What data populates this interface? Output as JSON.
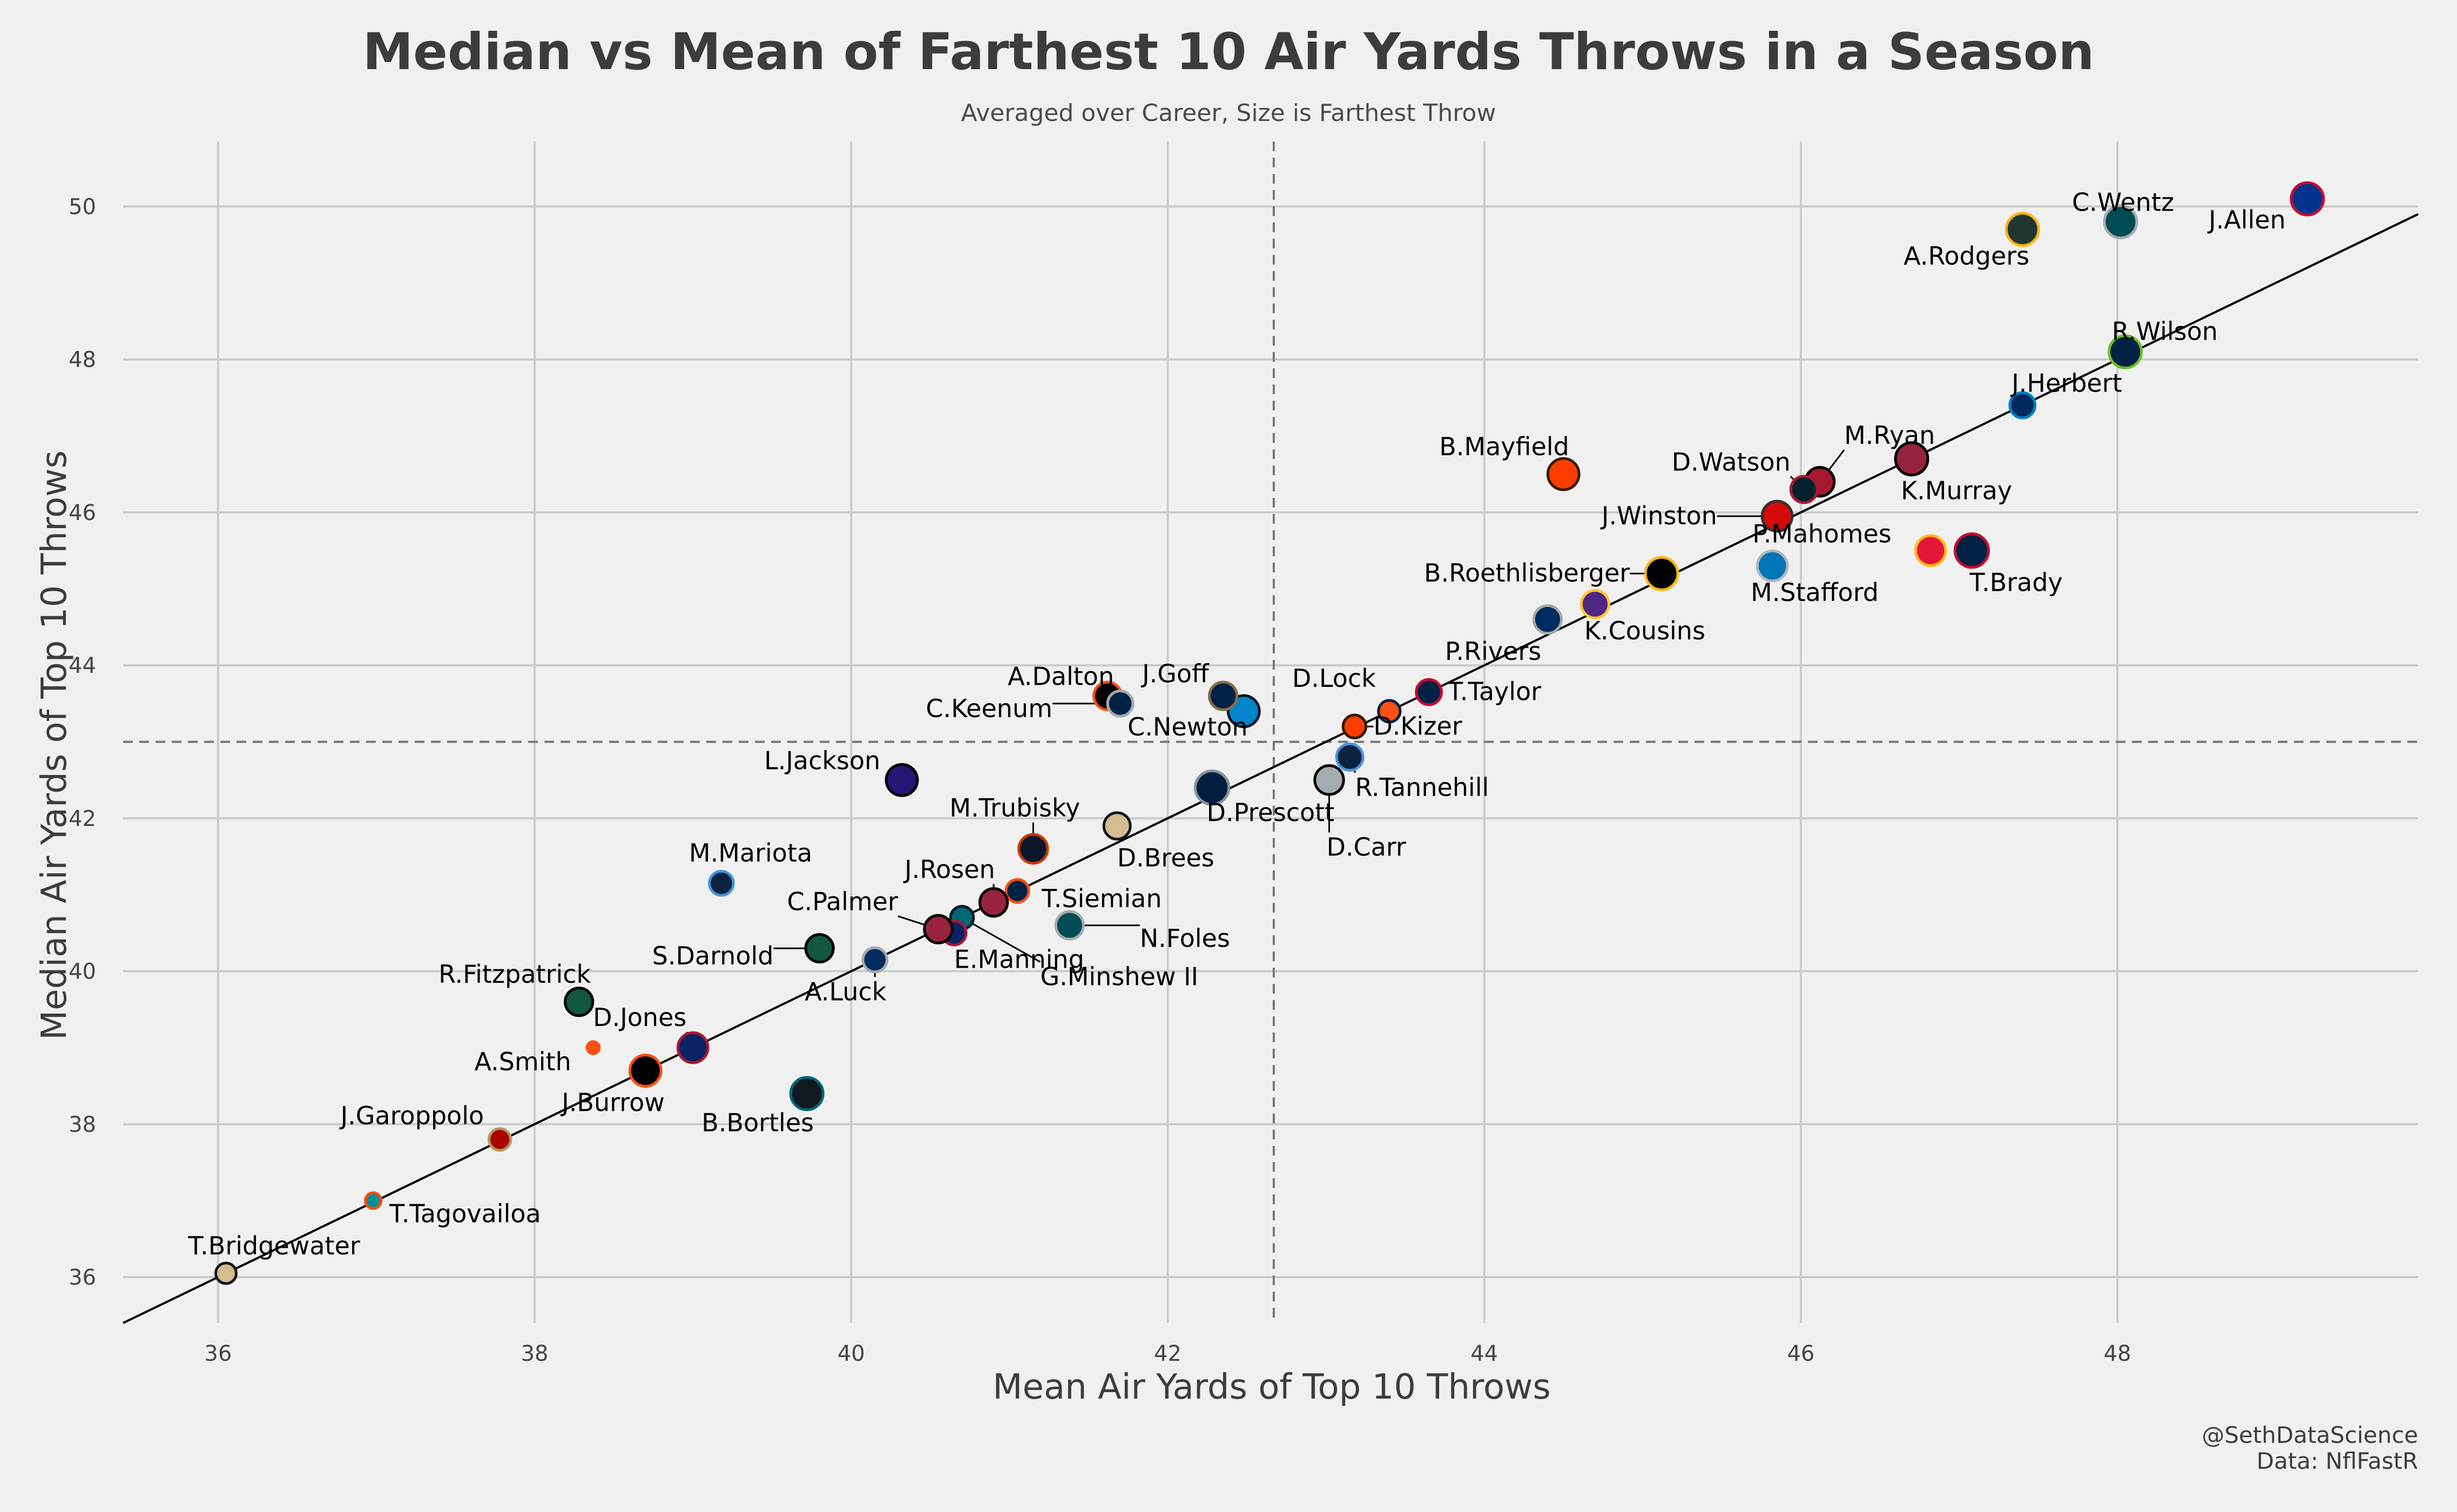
{
  "chart_data": {
    "type": "scatter",
    "title": "Median vs Mean of Farthest 10 Air Yards Throws in a Season",
    "subtitle": "Averaged over Career, Size is Farthest Throw",
    "xlabel": "Mean Air Yards of Top 10 Throws",
    "ylabel": "Median Air Yards of Top 10 Throws",
    "xlim": [
      35.4,
      49.9
    ],
    "ylim": [
      35.4,
      50.85
    ],
    "x_ticks": [
      36,
      38,
      40,
      42,
      44,
      46,
      48
    ],
    "y_ticks": [
      36,
      38,
      40,
      42,
      44,
      46,
      48,
      50
    ],
    "grid": true,
    "reference_lines": {
      "vertical_x": 42.67,
      "horizontal_y": 43.0
    },
    "fit_line": {
      "slope": 1.0,
      "intercept": 0.0
    },
    "credit": [
      "@SethDataScience",
      "Data: NflFastR"
    ],
    "points": [
      {
        "name": "J.Allen",
        "x": 49.2,
        "y": 50.1,
        "fill": "#00338D",
        "edge": "#C60C30",
        "size": 1.0
      },
      {
        "name": "C.Wentz",
        "x": 48.02,
        "y": 49.8,
        "fill": "#004C54",
        "edge": "#A5ACAF",
        "size": 1.0
      },
      {
        "name": "A.Rodgers",
        "x": 47.4,
        "y": 49.7,
        "fill": "#203731",
        "edge": "#FFB612",
        "size": 1.0
      },
      {
        "name": "R.Wilson",
        "x": 48.05,
        "y": 48.1,
        "fill": "#002244",
        "edge": "#69BE28",
        "size": 1.0
      },
      {
        "name": "J.Herbert",
        "x": 47.4,
        "y": 47.4,
        "fill": "#002A5E",
        "edge": "#0080C6",
        "size": 0.7
      },
      {
        "name": "M.Ryan",
        "x": 46.12,
        "y": 46.4,
        "fill": "#A71930",
        "edge": "#000000",
        "size": 0.85
      },
      {
        "name": "K.Murray",
        "x": 46.7,
        "y": 46.7,
        "fill": "#97233F",
        "edge": "#000000",
        "size": 1.0
      },
      {
        "name": "D.Watson",
        "x": 46.02,
        "y": 46.3,
        "fill": "#03202F",
        "edge": "#A71930",
        "size": 0.75
      },
      {
        "name": "B.Mayfield",
        "x": 44.5,
        "y": 46.5,
        "fill": "#FF3C00",
        "edge": "#311D00",
        "size": 0.95
      },
      {
        "name": "J.Winston",
        "x": 45.85,
        "y": 45.95,
        "fill": "#D50A0A",
        "edge": "#34302B",
        "size": 0.9
      },
      {
        "name": "P.Mahomes",
        "x": 46.82,
        "y": 45.5,
        "fill": "#E31837",
        "edge": "#FFB81C",
        "size": 0.9
      },
      {
        "name": "T.Brady",
        "x": 47.08,
        "y": 45.5,
        "fill": "#002244",
        "edge": "#C60C30",
        "size": 1.05
      },
      {
        "name": "M.Stafford",
        "x": 45.82,
        "y": 45.3,
        "fill": "#0076B6",
        "edge": "#B0B7BC",
        "size": 0.9
      },
      {
        "name": "B.Roethlisberger",
        "x": 45.12,
        "y": 45.2,
        "fill": "#000000",
        "edge": "#FFB612",
        "size": 1.0
      },
      {
        "name": "K.Cousins",
        "x": 44.7,
        "y": 44.8,
        "fill": "#4F2683",
        "edge": "#FFC62F",
        "size": 0.8
      },
      {
        "name": "P.Rivers",
        "x": 44.4,
        "y": 44.6,
        "fill": "#002C5F",
        "edge": "#A2AAAD",
        "size": 0.8
      },
      {
        "name": "T.Taylor",
        "x": 43.65,
        "y": 43.65,
        "fill": "#002244",
        "edge": "#C60C30",
        "size": 0.7
      },
      {
        "name": "D.Lock",
        "x": 43.4,
        "y": 43.4,
        "fill": "#FB4F14",
        "edge": "#002244",
        "size": 0.55
      },
      {
        "name": "D.Kizer",
        "x": 43.18,
        "y": 43.2,
        "fill": "#FF3C00",
        "edge": "#311D00",
        "size": 0.6
      },
      {
        "name": "R.Tannehill",
        "x": 43.15,
        "y": 42.8,
        "fill": "#0C2340",
        "edge": "#4B92DB",
        "size": 0.75
      },
      {
        "name": "D.Carr",
        "x": 43.02,
        "y": 42.5,
        "fill": "#A5ACAF",
        "edge": "#000000",
        "size": 0.85
      },
      {
        "name": "D.Prescott",
        "x": 42.28,
        "y": 42.4,
        "fill": "#041E42",
        "edge": "#869397",
        "size": 1.05
      },
      {
        "name": "C.Newton",
        "x": 42.48,
        "y": 43.4,
        "fill": "#0085CA",
        "edge": "#101820",
        "size": 0.95
      },
      {
        "name": "J.Goff",
        "x": 42.35,
        "y": 43.6,
        "fill": "#002244",
        "edge": "#866D4B",
        "size": 0.8
      },
      {
        "name": "A.Dalton",
        "x": 41.62,
        "y": 43.6,
        "fill": "#000000",
        "edge": "#FB4F14",
        "size": 0.8
      },
      {
        "name": "C.Keenum",
        "x": 41.7,
        "y": 43.5,
        "fill": "#002244",
        "edge": "#A5ACAF",
        "size": 0.7
      },
      {
        "name": "L.Jackson",
        "x": 40.32,
        "y": 42.5,
        "fill": "#241773",
        "edge": "#000000",
        "size": 0.95
      },
      {
        "name": "D.Brees",
        "x": 41.68,
        "y": 41.9,
        "fill": "#D3BC8D",
        "edge": "#101820",
        "size": 0.75
      },
      {
        "name": "M.Trubisky",
        "x": 41.15,
        "y": 41.6,
        "fill": "#0B162A",
        "edge": "#C83803",
        "size": 0.85
      },
      {
        "name": "T.Siemian",
        "x": 41.05,
        "y": 41.05,
        "fill": "#002244",
        "edge": "#FB4F14",
        "size": 0.6
      },
      {
        "name": "J.Rosen",
        "x": 40.9,
        "y": 40.9,
        "fill": "#97233F",
        "edge": "#000000",
        "size": 0.8
      },
      {
        "name": "G.Minshew II",
        "x": 40.7,
        "y": 40.7,
        "fill": "#006778",
        "edge": "#101820",
        "size": 0.6
      },
      {
        "name": "E.Manning",
        "x": 40.65,
        "y": 40.5,
        "fill": "#0B2265",
        "edge": "#A71930",
        "size": 0.65
      },
      {
        "name": "C.Palmer",
        "x": 40.55,
        "y": 40.55,
        "fill": "#97233F",
        "edge": "#000000",
        "size": 0.8
      },
      {
        "name": "N.Foles",
        "x": 41.38,
        "y": 40.6,
        "fill": "#004C54",
        "edge": "#A5ACAF",
        "size": 0.8
      },
      {
        "name": "A.Luck",
        "x": 40.15,
        "y": 40.15,
        "fill": "#002C5F",
        "edge": "#A2AAAD",
        "size": 0.65
      },
      {
        "name": "S.Darnold",
        "x": 39.8,
        "y": 40.3,
        "fill": "#125740",
        "edge": "#000000",
        "size": 0.8
      },
      {
        "name": "M.Mariota",
        "x": 39.18,
        "y": 41.15,
        "fill": "#0C2340",
        "edge": "#4B92DB",
        "size": 0.65
      },
      {
        "name": "R.Fitzpatrick",
        "x": 38.28,
        "y": 39.6,
        "fill": "#125740",
        "edge": "#000000",
        "size": 0.8
      },
      {
        "name": "D.Jones",
        "x": 39.0,
        "y": 39.0,
        "fill": "#0B2265",
        "edge": "#A71930",
        "size": 0.9
      },
      {
        "name": "A.Smith",
        "x": 38.37,
        "y": 39.0,
        "fill": "#FB4F14",
        "edge": "#FB4F14",
        "size": 0.15
      },
      {
        "name": "J.Burrow",
        "x": 38.7,
        "y": 38.7,
        "fill": "#000000",
        "edge": "#FB4F14",
        "size": 0.95
      },
      {
        "name": "B.Bortles",
        "x": 39.72,
        "y": 38.4,
        "fill": "#101820",
        "edge": "#006778",
        "size": 1.0
      },
      {
        "name": "J.Garoppolo",
        "x": 37.78,
        "y": 37.8,
        "fill": "#AA0000",
        "edge": "#B3995D",
        "size": 0.55
      },
      {
        "name": "T.Tagovailoa",
        "x": 36.98,
        "y": 37.0,
        "fill": "#008E97",
        "edge": "#FC4C02",
        "size": 0.3
      },
      {
        "name": "T.Bridgewater",
        "x": 36.05,
        "y": 36.05,
        "fill": "#D3BC8D",
        "edge": "#101820",
        "size": 0.5
      }
    ]
  }
}
